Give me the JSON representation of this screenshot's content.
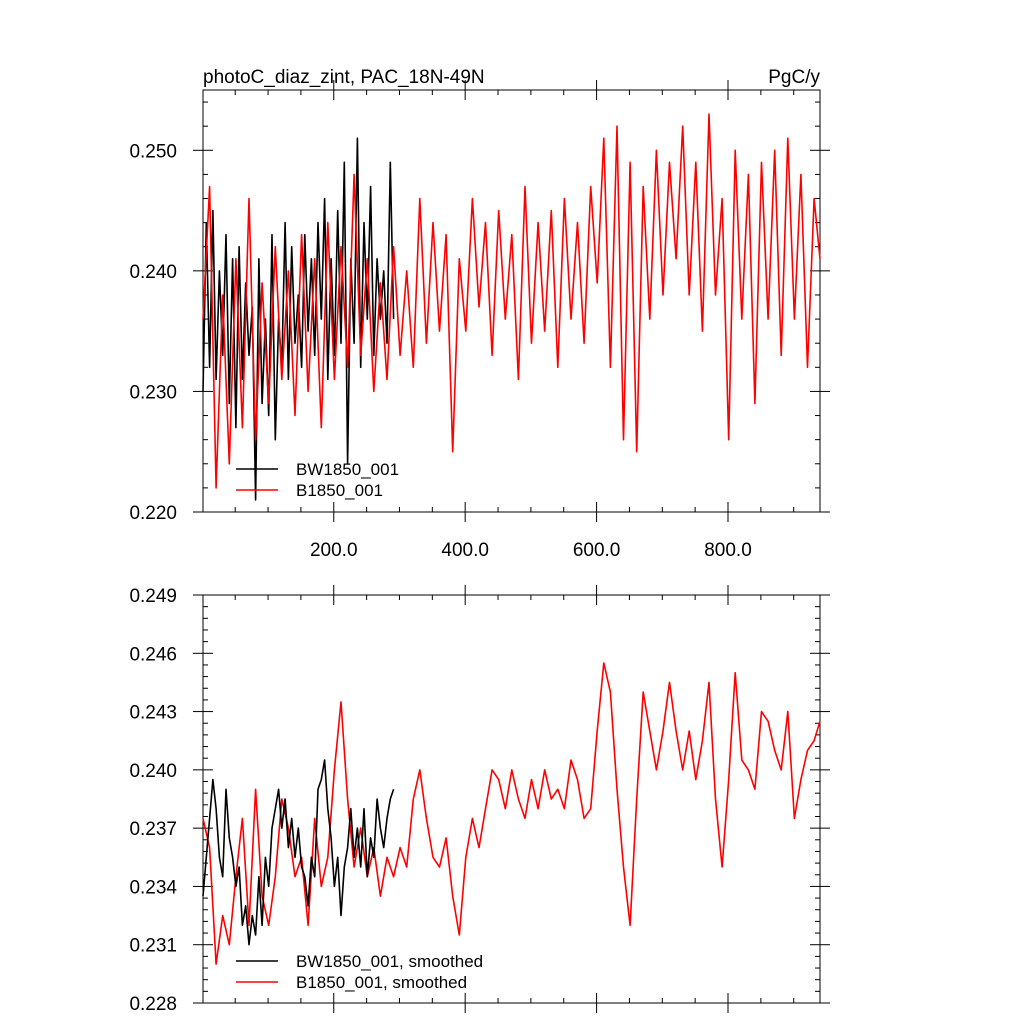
{
  "chart_data": [
    {
      "type": "line",
      "title_left": "photoC_diaz_zint, PAC_18N-49N",
      "title_right": "PgC/y",
      "xlabel": "",
      "ylabel": "",
      "xlim": [
        1,
        940
      ],
      "ylim": [
        0.22,
        0.255
      ],
      "x_ticks": [
        200,
        400,
        600,
        800
      ],
      "x_tick_labels": [
        "200.0",
        "400.0",
        "600.0",
        "800.0"
      ],
      "y_ticks": [
        0.22,
        0.23,
        0.24,
        0.25
      ],
      "y_tick_labels": [
        "0.220",
        "0.230",
        "0.240",
        "0.250"
      ],
      "legend_position": "bottom-left",
      "legend": [
        "BW1850_001",
        "B1850_001"
      ],
      "series": [
        {
          "name": "BW1850_001",
          "color": "#000000",
          "x": [
            1,
            6,
            11,
            16,
            21,
            26,
            31,
            36,
            41,
            46,
            51,
            56,
            61,
            66,
            71,
            76,
            81,
            86,
            91,
            96,
            101,
            106,
            111,
            116,
            121,
            126,
            131,
            136,
            141,
            146,
            151,
            156,
            161,
            166,
            171,
            176,
            181,
            186,
            191,
            196,
            201,
            206,
            211,
            216,
            221,
            226,
            231,
            236,
            241,
            246,
            251,
            256,
            261,
            266,
            271,
            276,
            281,
            286,
            291
          ],
          "values": [
            0.23,
            0.244,
            0.232,
            0.245,
            0.231,
            0.24,
            0.233,
            0.243,
            0.229,
            0.241,
            0.227,
            0.242,
            0.231,
            0.239,
            0.233,
            0.237,
            0.221,
            0.241,
            0.229,
            0.236,
            0.228,
            0.243,
            0.226,
            0.236,
            0.232,
            0.244,
            0.231,
            0.242,
            0.234,
            0.238,
            0.232,
            0.243,
            0.235,
            0.241,
            0.233,
            0.244,
            0.236,
            0.246,
            0.231,
            0.241,
            0.233,
            0.245,
            0.234,
            0.249,
            0.224,
            0.241,
            0.234,
            0.251,
            0.232,
            0.244,
            0.236,
            0.247,
            0.233,
            0.241,
            0.236,
            0.24,
            0.234,
            0.249,
            0.236
          ]
        },
        {
          "name": "B1850_001",
          "color": "#ff0000",
          "x": [
            1,
            11,
            21,
            31,
            41,
            51,
            61,
            71,
            81,
            91,
            101,
            111,
            121,
            131,
            141,
            151,
            161,
            171,
            181,
            191,
            201,
            211,
            221,
            231,
            241,
            251,
            261,
            271,
            281,
            291,
            301,
            311,
            321,
            331,
            341,
            351,
            361,
            371,
            381,
            391,
            401,
            411,
            421,
            431,
            441,
            451,
            461,
            471,
            481,
            491,
            501,
            511,
            521,
            531,
            541,
            551,
            561,
            571,
            581,
            591,
            601,
            611,
            621,
            631,
            641,
            651,
            661,
            671,
            681,
            691,
            701,
            711,
            721,
            731,
            741,
            751,
            761,
            771,
            781,
            791,
            801,
            811,
            821,
            831,
            841,
            851,
            861,
            871,
            881,
            891,
            901,
            911,
            921,
            931,
            940
          ],
          "values": [
            0.236,
            0.247,
            0.222,
            0.238,
            0.224,
            0.241,
            0.227,
            0.246,
            0.226,
            0.239,
            0.229,
            0.242,
            0.231,
            0.24,
            0.228,
            0.243,
            0.23,
            0.241,
            0.227,
            0.244,
            0.231,
            0.242,
            0.232,
            0.248,
            0.233,
            0.241,
            0.23,
            0.239,
            0.231,
            0.242,
            0.233,
            0.24,
            0.232,
            0.246,
            0.234,
            0.244,
            0.235,
            0.243,
            0.225,
            0.241,
            0.235,
            0.246,
            0.237,
            0.244,
            0.233,
            0.245,
            0.236,
            0.243,
            0.231,
            0.247,
            0.234,
            0.244,
            0.235,
            0.245,
            0.232,
            0.246,
            0.236,
            0.244,
            0.234,
            0.247,
            0.239,
            0.251,
            0.232,
            0.252,
            0.226,
            0.249,
            0.225,
            0.247,
            0.236,
            0.25,
            0.238,
            0.249,
            0.241,
            0.252,
            0.238,
            0.249,
            0.235,
            0.253,
            0.238,
            0.246,
            0.226,
            0.25,
            0.236,
            0.248,
            0.229,
            0.249,
            0.236,
            0.25,
            0.233,
            0.251,
            0.236,
            0.248,
            0.232,
            0.246,
            0.241
          ]
        }
      ]
    },
    {
      "type": "line",
      "xlabel": "",
      "ylabel": "",
      "xlim": [
        1,
        940
      ],
      "ylim": [
        0.228,
        0.249
      ],
      "x_ticks": [
        200,
        400,
        600,
        800
      ],
      "y_ticks": [
        0.228,
        0.231,
        0.234,
        0.237,
        0.24,
        0.243,
        0.246,
        0.249
      ],
      "y_tick_labels": [
        "0.228",
        "0.231",
        "0.234",
        "0.237",
        "0.240",
        "0.243",
        "0.246",
        "0.249"
      ],
      "legend_position": "bottom-left",
      "legend": [
        "BW1850_001, smoothed",
        "B1850_001, smoothed"
      ],
      "series": [
        {
          "name": "BW1850_001, smoothed",
          "color": "#000000",
          "x": [
            1,
            6,
            11,
            16,
            21,
            26,
            31,
            36,
            41,
            46,
            51,
            56,
            61,
            66,
            71,
            76,
            81,
            86,
            91,
            96,
            101,
            106,
            111,
            116,
            121,
            126,
            131,
            136,
            141,
            146,
            151,
            156,
            161,
            166,
            171,
            176,
            181,
            186,
            191,
            196,
            201,
            206,
            211,
            216,
            221,
            226,
            231,
            236,
            241,
            246,
            251,
            256,
            261,
            266,
            271,
            276,
            281,
            286,
            291
          ],
          "values": [
            0.2335,
            0.2355,
            0.2375,
            0.2395,
            0.238,
            0.2355,
            0.2345,
            0.239,
            0.2365,
            0.2355,
            0.234,
            0.235,
            0.232,
            0.233,
            0.231,
            0.2325,
            0.2315,
            0.2345,
            0.232,
            0.2355,
            0.234,
            0.237,
            0.238,
            0.239,
            0.237,
            0.2385,
            0.236,
            0.2375,
            0.2355,
            0.237,
            0.235,
            0.2345,
            0.233,
            0.2355,
            0.2345,
            0.239,
            0.2395,
            0.2405,
            0.238,
            0.2365,
            0.234,
            0.2355,
            0.2325,
            0.235,
            0.236,
            0.238,
            0.2355,
            0.237,
            0.235,
            0.238,
            0.2345,
            0.2365,
            0.2355,
            0.2385,
            0.237,
            0.236,
            0.2375,
            0.2385,
            0.239
          ]
        },
        {
          "name": "B1850_001, smoothed",
          "color": "#ff0000",
          "x": [
            1,
            11,
            21,
            31,
            41,
            51,
            61,
            71,
            81,
            91,
            101,
            111,
            121,
            131,
            141,
            151,
            161,
            171,
            181,
            191,
            201,
            211,
            221,
            231,
            241,
            251,
            261,
            271,
            281,
            291,
            301,
            311,
            321,
            331,
            341,
            351,
            361,
            371,
            381,
            391,
            401,
            411,
            421,
            431,
            441,
            451,
            461,
            471,
            481,
            491,
            501,
            511,
            521,
            531,
            541,
            551,
            561,
            571,
            581,
            591,
            601,
            611,
            621,
            631,
            641,
            651,
            661,
            671,
            681,
            691,
            701,
            711,
            721,
            731,
            741,
            751,
            761,
            771,
            781,
            791,
            801,
            811,
            821,
            831,
            841,
            851,
            861,
            871,
            881,
            891,
            901,
            911,
            921,
            931,
            940
          ],
          "values": [
            0.2375,
            0.236,
            0.23,
            0.2325,
            0.231,
            0.2345,
            0.2375,
            0.232,
            0.239,
            0.2335,
            0.232,
            0.2345,
            0.2385,
            0.237,
            0.2345,
            0.2355,
            0.232,
            0.2375,
            0.234,
            0.2355,
            0.24,
            0.2435,
            0.2385,
            0.235,
            0.237,
            0.2345,
            0.236,
            0.2335,
            0.2355,
            0.2345,
            0.236,
            0.235,
            0.2385,
            0.24,
            0.2375,
            0.2355,
            0.235,
            0.2365,
            0.2335,
            0.2315,
            0.2355,
            0.2375,
            0.236,
            0.238,
            0.24,
            0.2395,
            0.238,
            0.24,
            0.2385,
            0.2375,
            0.2395,
            0.238,
            0.24,
            0.2385,
            0.239,
            0.238,
            0.2405,
            0.2395,
            0.2375,
            0.238,
            0.242,
            0.2455,
            0.244,
            0.239,
            0.235,
            0.232,
            0.2385,
            0.244,
            0.242,
            0.24,
            0.242,
            0.2445,
            0.242,
            0.24,
            0.242,
            0.2395,
            0.2415,
            0.2445,
            0.2385,
            0.235,
            0.2395,
            0.245,
            0.2405,
            0.24,
            0.239,
            0.243,
            0.2425,
            0.241,
            0.24,
            0.243,
            0.2375,
            0.2395,
            0.241,
            0.2415,
            0.2425
          ]
        }
      ]
    }
  ]
}
